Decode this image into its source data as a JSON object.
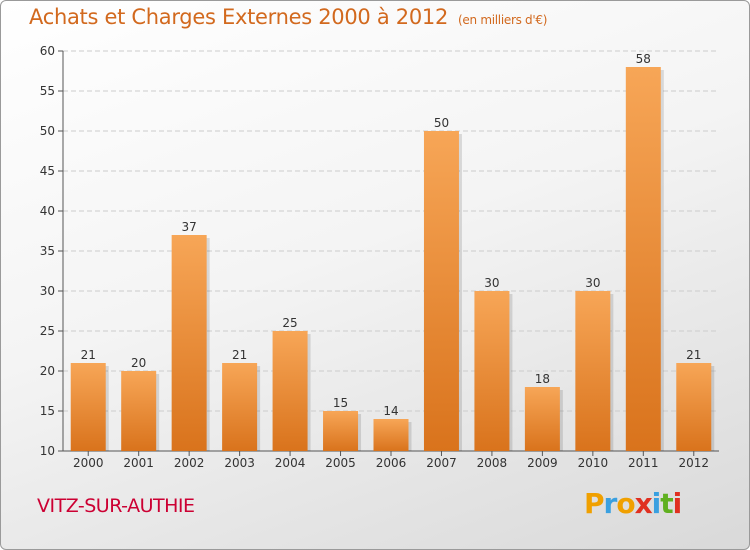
{
  "title": "Achats et Charges Externes 2000 à 2012",
  "subtitle": "(en milliers d'€)",
  "place": "VITZ-SUR-AUTHIE",
  "logo": {
    "letters": [
      "P",
      "r",
      "o",
      "x",
      "i",
      "t",
      "i"
    ],
    "colors": [
      "#f0a000",
      "#3aa0e0",
      "#f0a000",
      "#e03020",
      "#3aa0e0",
      "#60b020",
      "#e03020"
    ]
  },
  "colors": {
    "bar_light": "#f7a657",
    "bar_dark": "#d9731c",
    "grid": "#cccccc",
    "axis": "#555555"
  },
  "chart_data": {
    "type": "bar",
    "categories": [
      "2000",
      "2001",
      "2002",
      "2003",
      "2004",
      "2005",
      "2006",
      "2007",
      "2008",
      "2009",
      "2010",
      "2011",
      "2012"
    ],
    "values": [
      21,
      20,
      37,
      21,
      25,
      15,
      14,
      50,
      30,
      18,
      30,
      58,
      21
    ],
    "ylim": [
      10,
      60
    ],
    "yticks": [
      10,
      15,
      20,
      25,
      30,
      35,
      40,
      45,
      50,
      55,
      60
    ],
    "grid": true
  }
}
